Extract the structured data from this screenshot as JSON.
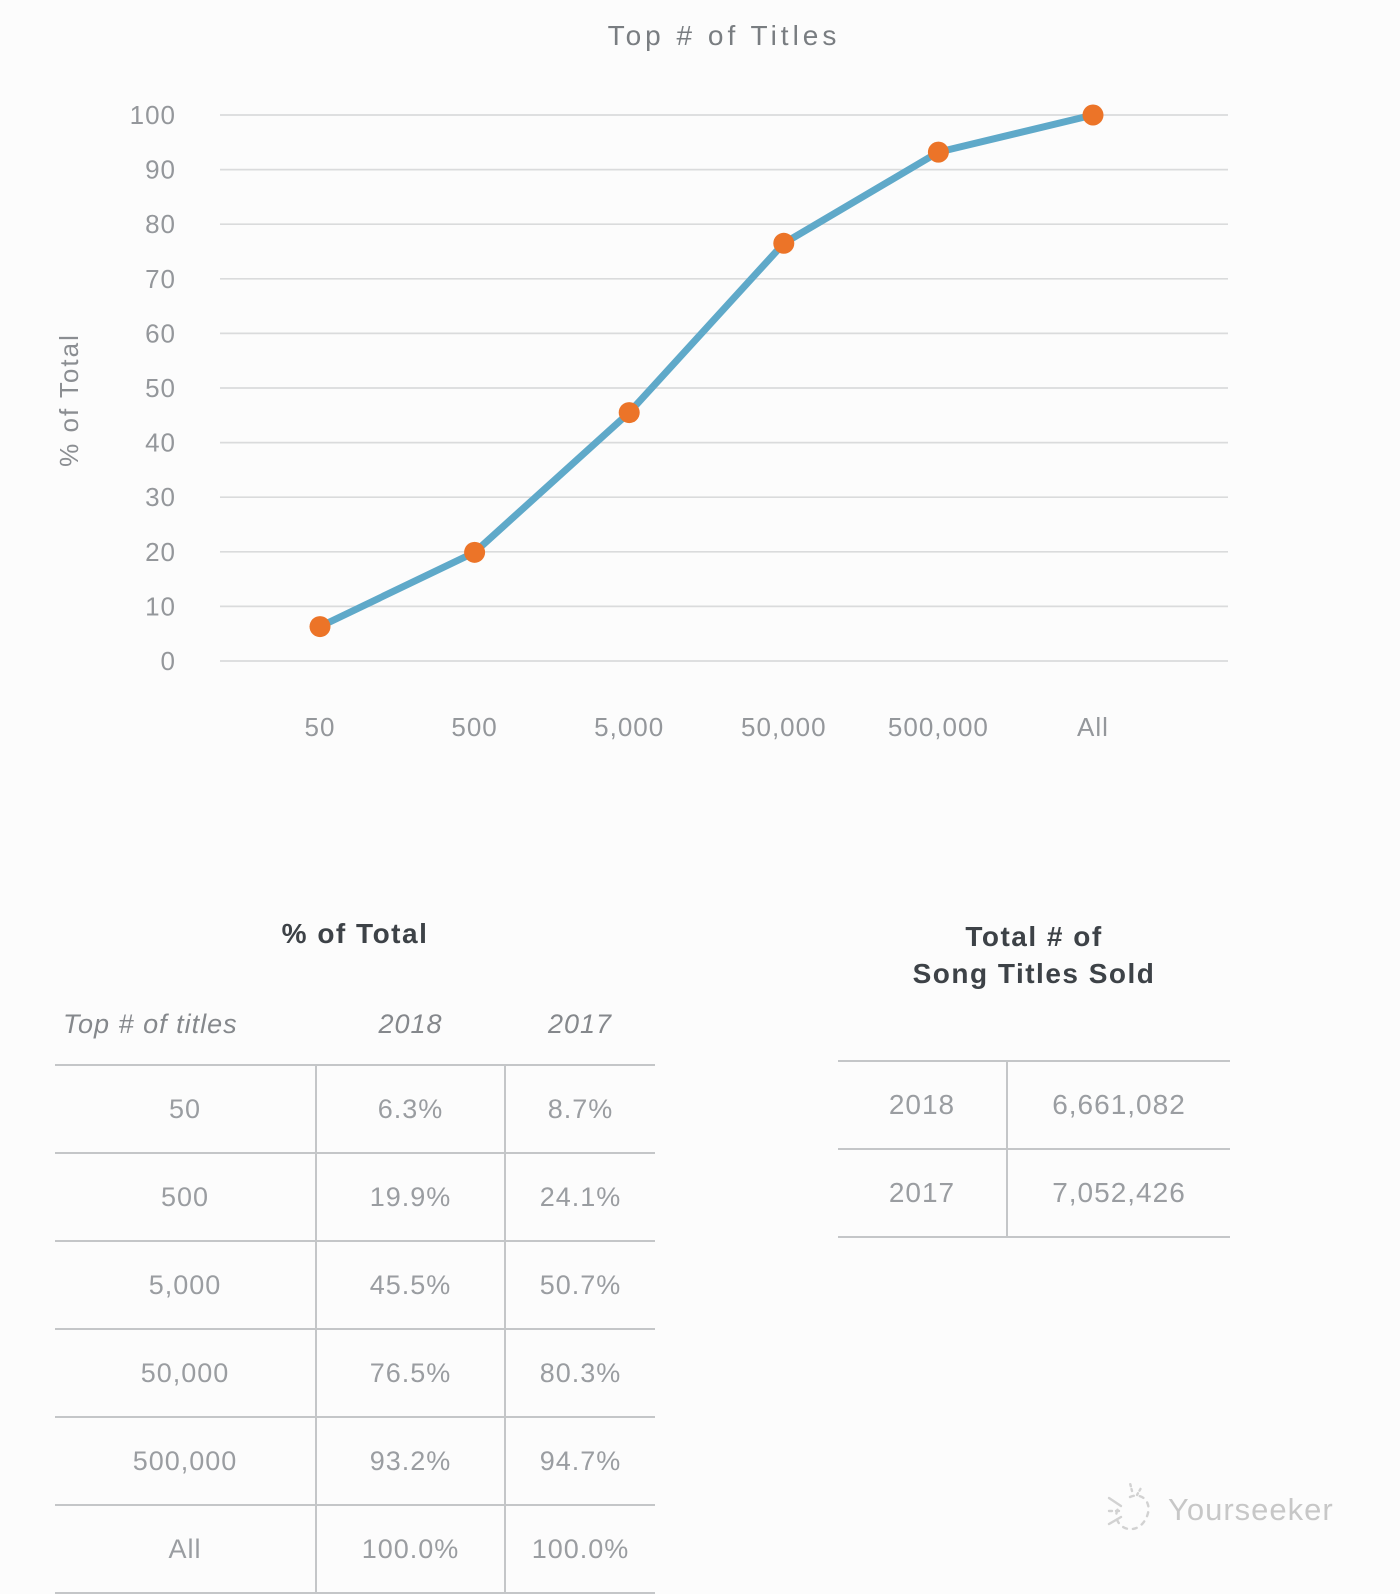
{
  "chart_data": {
    "type": "line",
    "title": "Top # of Titles",
    "xlabel": "",
    "ylabel": "% of Total",
    "categories": [
      "50",
      "500",
      "5,000",
      "50,000",
      "500,000",
      "All"
    ],
    "series": [
      {
        "name": "2018",
        "values": [
          6.3,
          19.9,
          45.5,
          76.5,
          93.2,
          100.0
        ]
      }
    ],
    "ylim": [
      0,
      100
    ],
    "yticks": [
      0,
      10,
      20,
      30,
      40,
      50,
      60,
      70,
      80,
      90,
      100
    ],
    "grid": "horizontal",
    "legend": "none",
    "colors": {
      "line": "#5fa9c9",
      "marker": "#ec7428",
      "grid": "#dadbdc"
    }
  },
  "percent_table": {
    "title": "% of Total",
    "columns": [
      "Top # of titles",
      "2018",
      "2017"
    ],
    "rows": [
      {
        "label": "50",
        "v2018": "6.3%",
        "v2017": "8.7%"
      },
      {
        "label": "500",
        "v2018": "19.9%",
        "v2017": "24.1%"
      },
      {
        "label": "5,000",
        "v2018": "45.5%",
        "v2017": "50.7%"
      },
      {
        "label": "50,000",
        "v2018": "76.5%",
        "v2017": "80.3%"
      },
      {
        "label": "500,000",
        "v2018": "93.2%",
        "v2017": "94.7%"
      },
      {
        "label": "All",
        "v2018": "100.0%",
        "v2017": "100.0%"
      }
    ]
  },
  "totals_table": {
    "title_line1": "Total # of",
    "title_line2": "Song Titles Sold",
    "rows": [
      {
        "label": "2018",
        "value": "6,661,082"
      },
      {
        "label": "2017",
        "value": "7,052,426"
      }
    ]
  },
  "watermark": {
    "text": "Yourseeker"
  }
}
